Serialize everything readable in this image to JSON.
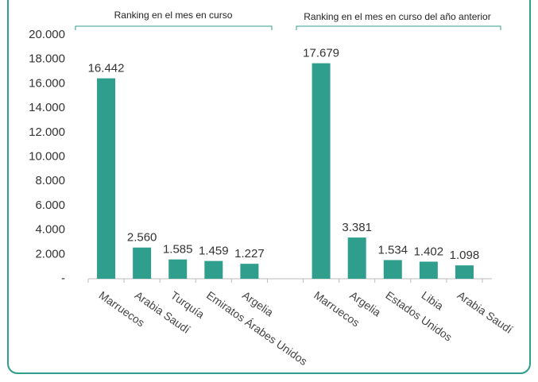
{
  "chart_data": {
    "type": "bar",
    "annotations": [
      "Ranking en el mes en curso",
      "Ranking en el mes en curso del año anterior"
    ],
    "categories": [
      "Marruecos",
      "Arabia Saudí",
      "Turquía",
      "Emiratos Árabes Unidos",
      "Argelia",
      null,
      "Marruecos",
      "Argelia",
      "Estados Unidos",
      "Libia",
      "Arabia Saudí"
    ],
    "values": [
      16442,
      2560,
      1585,
      1459,
      1227,
      null,
      17679,
      3381,
      1534,
      1402,
      1098
    ],
    "value_labels": [
      "16.442",
      "2.560",
      "1.585",
      "1.459",
      "1.227",
      null,
      "17.679",
      "3.381",
      "1.534",
      "1.402",
      "1.098"
    ],
    "color": "#2f9e8c",
    "ylim": [
      0,
      20000
    ],
    "yticks": [
      {
        "value": 0,
        "label": "-"
      },
      {
        "value": 2000,
        "label": "2.000"
      },
      {
        "value": 4000,
        "label": "4.000"
      },
      {
        "value": 6000,
        "label": "6.000"
      },
      {
        "value": 8000,
        "label": "8.000"
      },
      {
        "value": 10000,
        "label": "10.000"
      },
      {
        "value": 12000,
        "label": "12.000"
      },
      {
        "value": 14000,
        "label": "14.000"
      },
      {
        "value": 16000,
        "label": "16.000"
      },
      {
        "value": 18000,
        "label": "18.000"
      },
      {
        "value": 20000,
        "label": "20.000"
      }
    ],
    "grid": false
  }
}
